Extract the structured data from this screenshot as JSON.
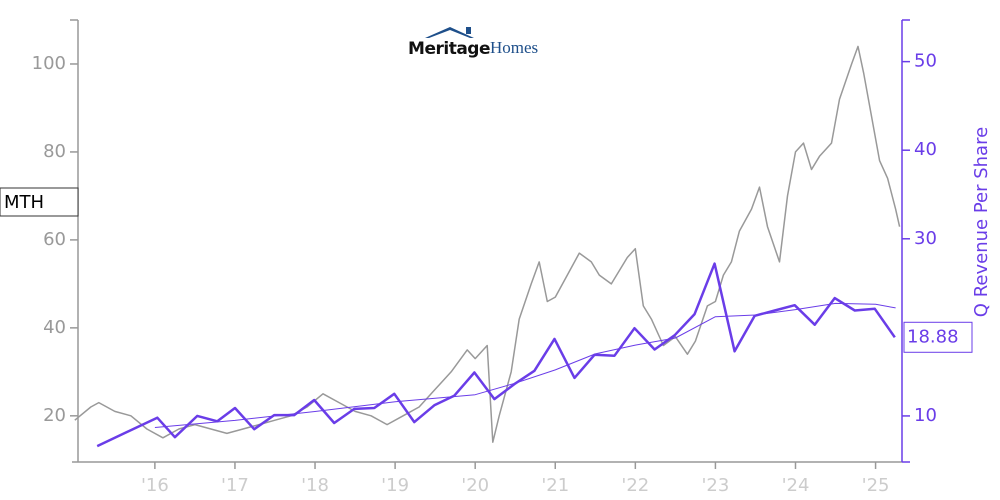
{
  "chart_data": {
    "type": "line",
    "logo": {
      "bold": "Meritage",
      "light": "Homes"
    },
    "y2label": "Q Revenue Per Share",
    "xlim": [
      2015.04,
      2025.33
    ],
    "xticks": [
      {
        "value": 2016,
        "label": "'16"
      },
      {
        "value": 2017,
        "label": "'17"
      },
      {
        "value": 2018,
        "label": "'18"
      },
      {
        "value": 2019,
        "label": "'19"
      },
      {
        "value": 2020,
        "label": "'20"
      },
      {
        "value": 2021,
        "label": "'21"
      },
      {
        "value": 2022,
        "label": "'22"
      },
      {
        "value": 2023,
        "label": "'23"
      },
      {
        "value": 2024,
        "label": "'24"
      },
      {
        "value": 2025,
        "label": "'25"
      }
    ],
    "ylim": [
      9.5,
      110
    ],
    "yticks": [
      20,
      40,
      60,
      80,
      100
    ],
    "y2lim": [
      4.8,
      54.7
    ],
    "y2ticks": [
      10,
      30,
      40,
      50
    ],
    "series": [
      {
        "name": "MTH",
        "color": "#999999",
        "width": 1.5,
        "x": [
          2015.0,
          2015.2,
          2015.3,
          2015.5,
          2015.7,
          2015.9,
          2016.1,
          2016.3,
          2016.5,
          2016.7,
          2016.9,
          2017.1,
          2017.3,
          2017.5,
          2017.7,
          2017.9,
          2018.1,
          2018.3,
          2018.5,
          2018.7,
          2018.9,
          2019.1,
          2019.3,
          2019.5,
          2019.7,
          2019.9,
          2020.0,
          2020.15,
          2020.22,
          2020.3,
          2020.45,
          2020.55,
          2020.7,
          2020.8,
          2020.9,
          2021.0,
          2021.15,
          2021.3,
          2021.45,
          2021.55,
          2021.7,
          2021.9,
          2022.0,
          2022.1,
          2022.2,
          2022.35,
          2022.5,
          2022.65,
          2022.75,
          2022.9,
          2023.0,
          2023.1,
          2023.2,
          2023.3,
          2023.45,
          2023.55,
          2023.65,
          2023.8,
          2023.9,
          2024.0,
          2024.1,
          2024.2,
          2024.3,
          2024.45,
          2024.55,
          2024.7,
          2024.78,
          2024.85,
          2024.95,
          2025.05,
          2025.15,
          2025.25,
          2025.3
        ],
        "values": [
          19,
          22,
          23,
          21,
          20,
          17,
          15,
          17,
          18,
          17,
          16,
          17,
          18,
          19,
          20,
          22,
          25,
          23,
          21,
          20,
          18,
          20,
          22,
          26,
          30,
          35,
          33,
          36,
          14,
          20,
          30,
          42,
          50,
          55,
          46,
          47,
          52,
          57,
          55,
          52,
          50,
          56,
          58,
          45,
          42,
          36,
          38,
          34,
          37,
          45,
          46,
          52,
          55,
          62,
          67,
          72,
          63,
          55,
          70,
          80,
          82,
          76,
          79,
          82,
          92,
          100,
          104,
          98,
          88,
          78,
          74,
          67,
          63
        ]
      },
      {
        "color": "#6a3de8",
        "width": 2.5,
        "axis": "y2",
        "x": [
          2015.28,
          2016.03,
          2016.25,
          2016.53,
          2016.78,
          2017.0,
          2017.24,
          2017.49,
          2017.74,
          2017.99,
          2018.24,
          2018.49,
          2018.74,
          2018.99,
          2019.24,
          2019.49,
          2019.74,
          2019.99,
          2020.24,
          2020.49,
          2020.74,
          2020.99,
          2021.24,
          2021.49,
          2021.74,
          2021.99,
          2022.24,
          2022.49,
          2022.74,
          2022.99,
          2023.24,
          2023.49,
          2023.74,
          2023.99,
          2024.24,
          2024.49,
          2024.74,
          2024.99,
          2025.24
        ],
        "values": [
          6.6,
          9.8,
          7.6,
          10,
          9.4,
          10.9,
          8.5,
          10.1,
          10.1,
          11.8,
          9.2,
          10.8,
          10.9,
          12.5,
          9.3,
          11.2,
          12.3,
          14.9,
          11.9,
          13.6,
          15.1,
          18.7,
          14.3,
          16.9,
          16.8,
          19.9,
          17.5,
          19.1,
          21.5,
          27.2,
          17.3,
          21.3,
          21.9,
          22.5,
          20.3,
          23.3,
          21.9,
          22.1,
          18.88
        ]
      },
      {
        "color": "#6a3de8",
        "width": 1,
        "axis": "y2",
        "x": [
          2016.0,
          2017.0,
          2018.0,
          2019.0,
          2020.0,
          2020.5,
          2021.0,
          2021.5,
          2022.0,
          2022.5,
          2023.0,
          2023.5,
          2024.0,
          2024.5,
          2025.0,
          2025.25
        ],
        "values": [
          8.7,
          9.5,
          10.5,
          11.6,
          12.4,
          13.7,
          15.2,
          17,
          18,
          18.8,
          21.2,
          21.4,
          22,
          22.7,
          22.6,
          22.2
        ]
      }
    ]
  }
}
